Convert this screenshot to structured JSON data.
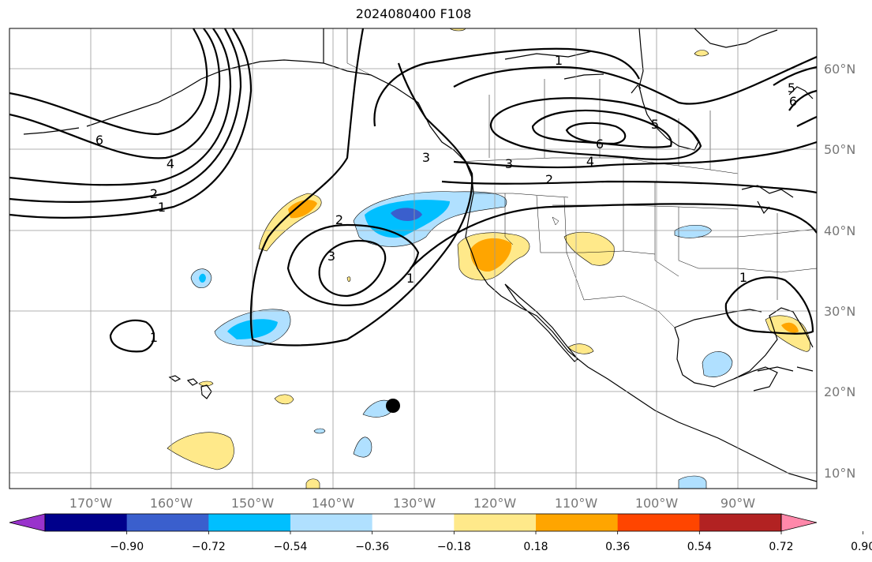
{
  "title": "2024080400 F108",
  "map": {
    "lat_labels": [
      "60°N",
      "50°N",
      "40°N",
      "30°N",
      "20°N",
      "10°N"
    ],
    "lon_labels": [
      "170°W",
      "160°W",
      "150°W",
      "140°W",
      "130°W",
      "120°W",
      "110°W",
      "100°W",
      "90°W"
    ],
    "contour_labels": [
      "6",
      "4",
      "2",
      "1",
      "3",
      "2",
      "3",
      "1",
      "1",
      "6",
      "5",
      "4",
      "3",
      "2",
      "1",
      "1",
      "5",
      "6"
    ],
    "marker": "storm-center-dot"
  },
  "colorbar": {
    "tick_labels": [
      "−0.90",
      "−0.72",
      "−0.54",
      "−0.36",
      "−0.18",
      "0.18",
      "0.36",
      "0.54",
      "0.72",
      "0.90"
    ],
    "colors": [
      "#9933cc",
      "#00008b",
      "#3a5fcd",
      "#00bfff",
      "#b0e0ff",
      "#ffffff",
      "#ffe98a",
      "#ffa500",
      "#ff4500",
      "#b22222",
      "#ff88aa"
    ]
  }
}
